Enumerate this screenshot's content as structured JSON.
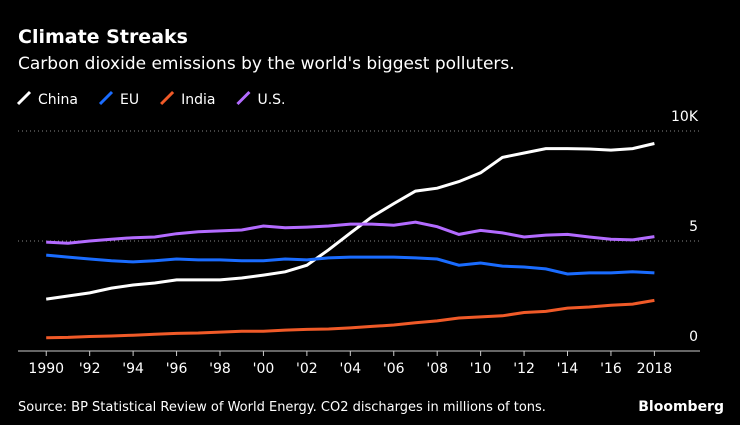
{
  "chart_data": {
    "type": "line",
    "title": "Climate Streaks",
    "subtitle": "Carbon dioxide emissions by the world's biggest polluters.",
    "source": "Source: BP Statistical Review of World Energy. CO2 discharges in millions of tons.",
    "brand": "Bloomberg",
    "x": [
      1990,
      1991,
      1992,
      1993,
      1994,
      1995,
      1996,
      1997,
      1998,
      1999,
      2000,
      2001,
      2002,
      2003,
      2004,
      2005,
      2006,
      2007,
      2008,
      2009,
      2010,
      2011,
      2012,
      2013,
      2014,
      2015,
      2016,
      2017,
      2018
    ],
    "series": [
      {
        "name": "China",
        "color": "#ffffff",
        "values": [
          2.36,
          2.5,
          2.64,
          2.86,
          3.0,
          3.09,
          3.23,
          3.23,
          3.23,
          3.32,
          3.45,
          3.6,
          3.9,
          4.6,
          5.36,
          6.1,
          6.7,
          7.27,
          7.4,
          7.7,
          8.1,
          8.8,
          9.0,
          9.2,
          9.2,
          9.18,
          9.13,
          9.2,
          9.43
        ]
      },
      {
        "name": "EU",
        "color": "#1a6cff",
        "values": [
          4.36,
          4.27,
          4.18,
          4.1,
          4.05,
          4.1,
          4.18,
          4.14,
          4.14,
          4.1,
          4.1,
          4.18,
          4.14,
          4.23,
          4.27,
          4.27,
          4.27,
          4.23,
          4.18,
          3.9,
          4.0,
          3.86,
          3.82,
          3.73,
          3.5,
          3.55,
          3.55,
          3.6,
          3.55
        ]
      },
      {
        "name": "India",
        "color": "#f05a28",
        "values": [
          0.6,
          0.62,
          0.66,
          0.68,
          0.72,
          0.76,
          0.8,
          0.82,
          0.86,
          0.9,
          0.9,
          0.95,
          0.98,
          1.0,
          1.05,
          1.12,
          1.18,
          1.28,
          1.37,
          1.5,
          1.55,
          1.6,
          1.75,
          1.8,
          1.95,
          2.0,
          2.08,
          2.13,
          2.3
        ]
      },
      {
        "name": "U.S.",
        "color": "#b36bff",
        "values": [
          4.95,
          4.9,
          5.0,
          5.08,
          5.15,
          5.18,
          5.33,
          5.42,
          5.46,
          5.5,
          5.68,
          5.6,
          5.63,
          5.68,
          5.77,
          5.77,
          5.72,
          5.86,
          5.65,
          5.3,
          5.48,
          5.37,
          5.18,
          5.27,
          5.3,
          5.18,
          5.08,
          5.05,
          5.2
        ]
      }
    ],
    "xlim": [
      1988.7,
      2020.1
    ],
    "xticks": [
      {
        "value": 1990,
        "label": "1990"
      },
      {
        "value": 1992,
        "label": "'92"
      },
      {
        "value": 1994,
        "label": "'94"
      },
      {
        "value": 1996,
        "label": "'96"
      },
      {
        "value": 1998,
        "label": "'98"
      },
      {
        "value": 2000,
        "label": "'00"
      },
      {
        "value": 2002,
        "label": "'02"
      },
      {
        "value": 2004,
        "label": "'04"
      },
      {
        "value": 2006,
        "label": "'06"
      },
      {
        "value": 2008,
        "label": "'08"
      },
      {
        "value": 2010,
        "label": "'10"
      },
      {
        "value": 2012,
        "label": "'12"
      },
      {
        "value": 2014,
        "label": "'14"
      },
      {
        "value": 2016,
        "label": "'16"
      },
      {
        "value": 2018,
        "label": "2018"
      }
    ],
    "ylim": [
      0,
      10
    ],
    "yticks": [
      0,
      5,
      {
        "value": 10,
        "label": "10K"
      }
    ],
    "grid": true
  }
}
